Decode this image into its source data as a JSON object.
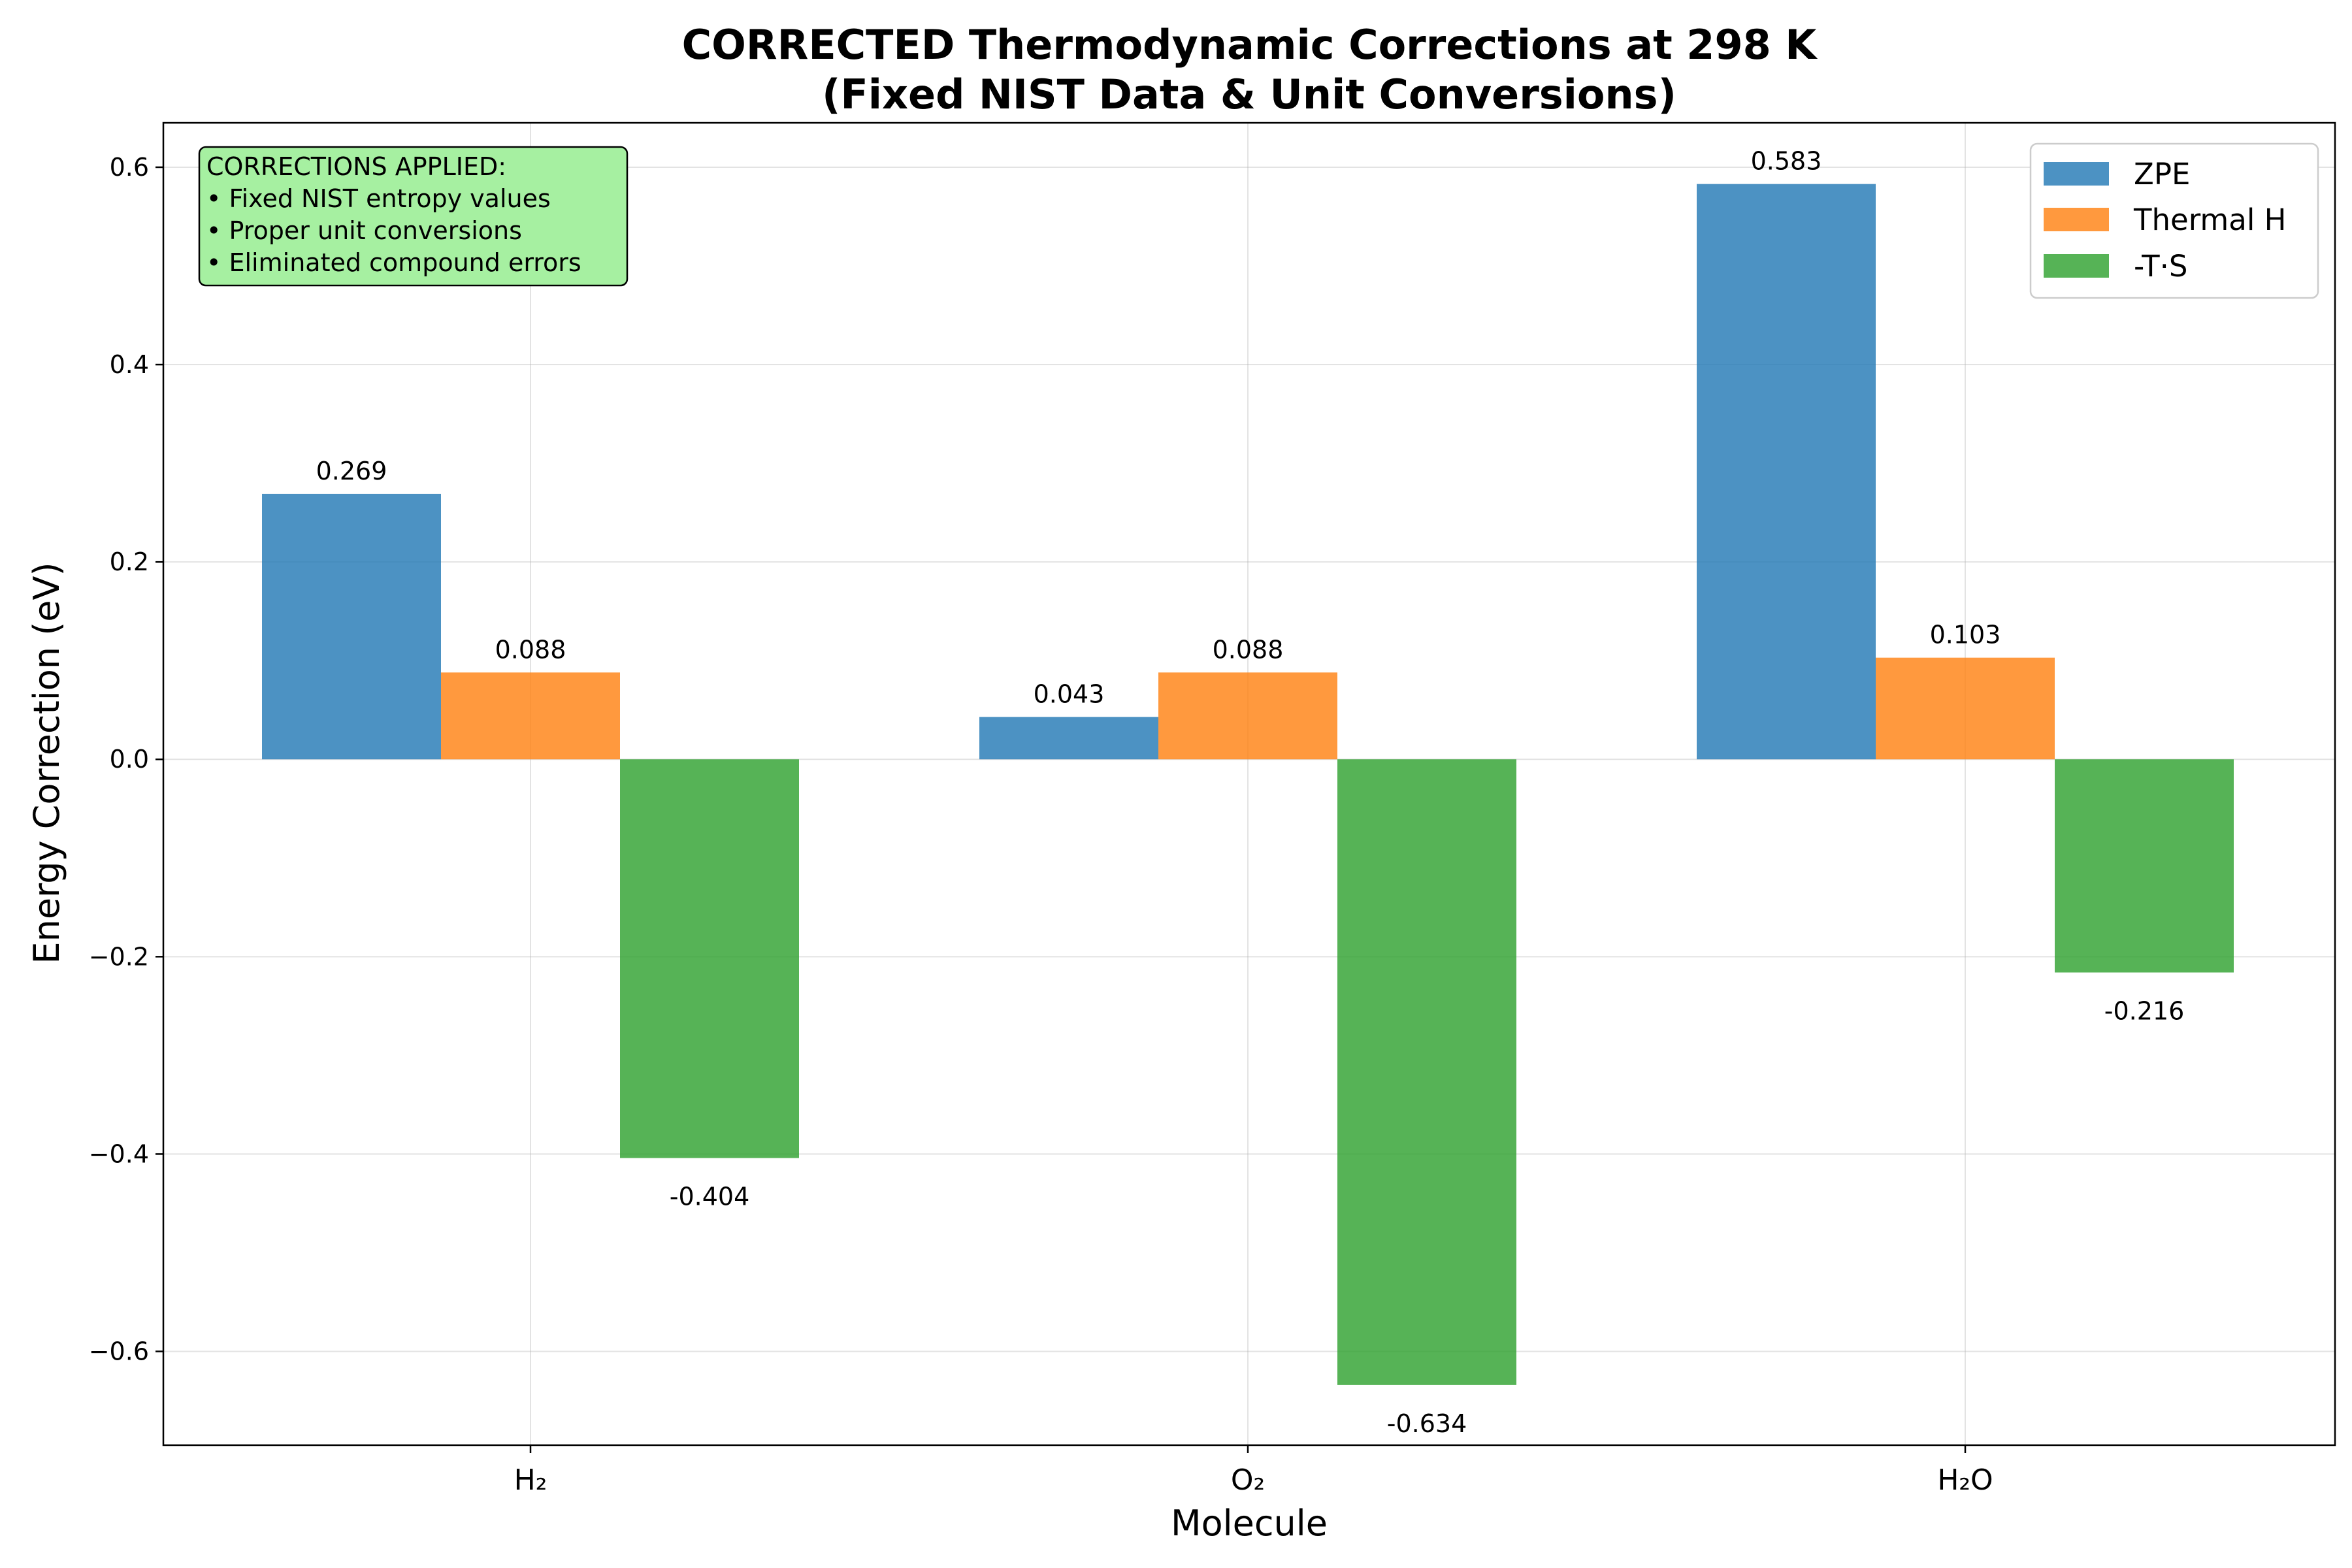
{
  "chart_data": {
    "type": "bar",
    "title": [
      "CORRECTED Thermodynamic Corrections at 298 K",
      "(Fixed NIST Data & Unit Conversions)"
    ],
    "xlabel": "Molecule",
    "ylabel": "Energy Correction (eV)",
    "categories": [
      "H₂",
      "O₂",
      "H₂O"
    ],
    "series": [
      {
        "name": "ZPE",
        "color": "#1f77b4",
        "values": [
          0.269,
          0.043,
          0.583
        ],
        "labels": [
          "0.269",
          "0.043",
          "0.583"
        ]
      },
      {
        "name": "Thermal H",
        "color": "#ff7f0e",
        "values": [
          0.088,
          0.088,
          0.103
        ],
        "labels": [
          "0.088",
          "0.088",
          "0.103"
        ]
      },
      {
        "name": "-T·S",
        "color": "#2ca02c",
        "values": [
          -0.404,
          -0.634,
          -0.216
        ],
        "labels": [
          "-0.404",
          "-0.634",
          "-0.216"
        ]
      }
    ],
    "ylim": [
      -0.695,
      0.645
    ],
    "yticks": [
      -0.6,
      -0.4,
      -0.2,
      0.0,
      0.2,
      0.4,
      0.6
    ],
    "ytick_labels": [
      "−0.6",
      "−0.4",
      "−0.2",
      "0.0",
      "0.2",
      "0.4",
      "0.6"
    ],
    "grid": true,
    "legend_position": "top-right",
    "annotation": {
      "lines": [
        "CORRECTIONS APPLIED:",
        "• Fixed NIST entropy values",
        "• Proper unit conversions",
        "• Eliminated compound errors"
      ],
      "background": "#a6f0a1"
    }
  }
}
